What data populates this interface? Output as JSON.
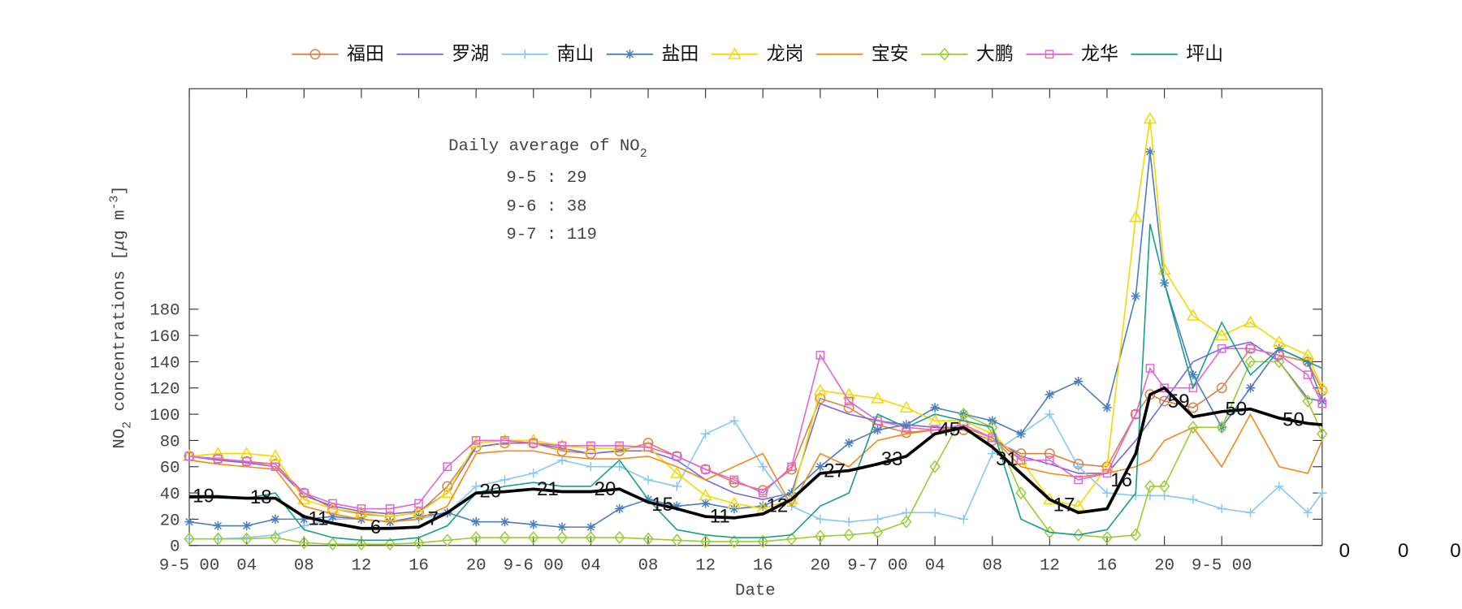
{
  "chart_data": {
    "type": "line",
    "xlabel": "Date",
    "ylabel": [
      "NO",
      "2",
      " concentrations [",
      "μ",
      "g m",
      "-3",
      "]"
    ],
    "annotation": {
      "title": "Daily average of NO",
      "title_sub": "2",
      "lines": [
        "9-5 : 29",
        "9-6 : 38",
        "9-7 : 119"
      ]
    },
    "extra_labels": [
      "0",
      "0",
      "0"
    ],
    "xlim": [
      0,
      79
    ],
    "ylim": [
      0,
      348
    ],
    "xticks": [
      {
        "value": 0,
        "label": "9-5 00"
      },
      {
        "value": 4,
        "label": "04"
      },
      {
        "value": 8,
        "label": "08"
      },
      12,
      16,
      20,
      {
        "value": 24,
        "label": "9-6 00"
      },
      {
        "value": 28,
        "label": "04"
      },
      {
        "value": 32,
        "label": "08"
      },
      {
        "value": 36,
        "label": "12"
      },
      {
        "value": 40,
        "label": "16"
      },
      {
        "value": 44,
        "label": "20"
      },
      {
        "value": 48,
        "label": "9-7 00"
      },
      {
        "value": 52,
        "label": "04"
      },
      {
        "value": 56,
        "label": "08"
      },
      {
        "value": 60,
        "label": "12"
      },
      {
        "value": 64,
        "label": "16"
      },
      {
        "value": 68,
        "label": "20"
      },
      {
        "value": 72,
        "label": "9-5 00"
      }
    ],
    "yticks": [
      0,
      20,
      40,
      60,
      80,
      100,
      120,
      140,
      160,
      180
    ],
    "x": [
      0,
      2,
      4,
      6,
      8,
      10,
      12,
      14,
      16,
      18,
      20,
      22,
      24,
      26,
      28,
      30,
      32,
      34,
      36,
      38,
      40,
      42,
      44,
      46,
      48,
      50,
      52,
      54,
      56,
      58,
      60,
      62,
      64,
      66,
      67,
      68,
      70,
      72,
      74,
      76,
      78,
      79
    ],
    "series": [
      {
        "name": "福田",
        "color": "#d9824a",
        "marker": "o",
        "values": [
          68,
          66,
          64,
          62,
          40,
          28,
          24,
          22,
          25,
          45,
          75,
          78,
          78,
          72,
          70,
          72,
          78,
          68,
          58,
          48,
          42,
          58,
          112,
          105,
          92,
          86,
          88,
          88,
          80,
          70,
          70,
          62,
          60,
          100,
          115,
          110,
          105,
          120,
          150,
          145,
          140,
          118
        ]
      },
      {
        "name": "罗湖",
        "color": "#7b68d9",
        "values": [
          68,
          65,
          63,
          60,
          38,
          30,
          26,
          24,
          26,
          40,
          75,
          78,
          78,
          74,
          70,
          72,
          72,
          65,
          50,
          40,
          35,
          40,
          108,
          100,
          95,
          92,
          90,
          90,
          82,
          68,
          62,
          55,
          55,
          80,
          95,
          110,
          140,
          150,
          155,
          140,
          112,
          110
        ]
      },
      {
        "name": "南山",
        "color": "#86c8f2",
        "marker": "+",
        "values": [
          5,
          5,
          6,
          8,
          15,
          20,
          20,
          18,
          20,
          25,
          45,
          50,
          55,
          65,
          60,
          60,
          50,
          45,
          85,
          95,
          60,
          30,
          20,
          18,
          20,
          25,
          25,
          20,
          70,
          85,
          100,
          60,
          40,
          38,
          38,
          38,
          35,
          28,
          25,
          45,
          25,
          40
        ]
      },
      {
        "name": "盐田",
        "color": "#4a7ec0",
        "marker": "*",
        "values": [
          18,
          15,
          15,
          20,
          20,
          22,
          20,
          18,
          22,
          25,
          18,
          18,
          16,
          14,
          14,
          28,
          35,
          30,
          32,
          28,
          30,
          40,
          60,
          78,
          88,
          92,
          105,
          100,
          95,
          85,
          115,
          125,
          105,
          190,
          300,
          200,
          130,
          90,
          120,
          150,
          140,
          110
        ]
      },
      {
        "name": "龙岗",
        "color": "#f5d800",
        "marker": "^",
        "values": [
          68,
          70,
          70,
          68,
          35,
          28,
          25,
          22,
          25,
          40,
          78,
          80,
          80,
          76,
          74,
          74,
          75,
          55,
          38,
          32,
          28,
          35,
          118,
          115,
          112,
          105,
          95,
          95,
          85,
          65,
          35,
          30,
          60,
          250,
          325,
          210,
          175,
          160,
          170,
          155,
          145,
          120
        ]
      },
      {
        "name": "宝安",
        "color": "#f08a1c",
        "values": [
          65,
          62,
          60,
          58,
          30,
          24,
          20,
          18,
          20,
          30,
          70,
          72,
          72,
          68,
          66,
          66,
          68,
          60,
          50,
          60,
          70,
          30,
          70,
          60,
          80,
          85,
          88,
          90,
          82,
          60,
          55,
          52,
          55,
          60,
          65,
          80,
          90,
          60,
          100,
          60,
          55,
          80
        ]
      },
      {
        "name": "大鹏",
        "color": "#9acd32",
        "marker": "d",
        "values": [
          5,
          5,
          5,
          6,
          2,
          1,
          1,
          1,
          2,
          4,
          6,
          6,
          6,
          6,
          6,
          6,
          5,
          4,
          3,
          3,
          3,
          5,
          7,
          8,
          10,
          18,
          60,
          100,
          90,
          40,
          10,
          8,
          6,
          8,
          45,
          45,
          90,
          90,
          140,
          140,
          110,
          85
        ]
      },
      {
        "name": "龙华",
        "color": "#e066d6",
        "marker": "s",
        "values": [
          68,
          66,
          64,
          60,
          40,
          32,
          28,
          28,
          32,
          60,
          80,
          80,
          78,
          76,
          76,
          76,
          75,
          68,
          58,
          50,
          40,
          60,
          145,
          110,
          95,
          90,
          88,
          92,
          82,
          65,
          65,
          50,
          55,
          100,
          135,
          120,
          120,
          150,
          150,
          145,
          130,
          108
        ]
      },
      {
        "name": "坪山",
        "color": "#1a9e8f",
        "values": [
          38,
          38,
          36,
          40,
          12,
          6,
          4,
          4,
          6,
          15,
          40,
          45,
          48,
          45,
          45,
          65,
          35,
          12,
          8,
          6,
          6,
          8,
          30,
          40,
          100,
          90,
          100,
          95,
          90,
          20,
          10,
          8,
          12,
          40,
          245,
          200,
          120,
          170,
          130,
          150,
          140,
          135
        ]
      }
    ],
    "mean": {
      "color": "#000000",
      "values": [
        37,
        37,
        36,
        36,
        22,
        17,
        13,
        13,
        14,
        25,
        40,
        41,
        43,
        41,
        41,
        43,
        33,
        28,
        22,
        21,
        24,
        35,
        55,
        57,
        62,
        68,
        85,
        90,
        75,
        55,
        35,
        25,
        28,
        70,
        115,
        120,
        98,
        102,
        104,
        97,
        93,
        92
      ]
    },
    "mean_labels": {
      "x": [
        1,
        5,
        9,
        13,
        17,
        21,
        25,
        29,
        33,
        37,
        41,
        45,
        49,
        53,
        57,
        61,
        65,
        69,
        73,
        77
      ],
      "values": [
        19,
        18,
        11,
        6,
        7,
        20,
        21,
        20,
        15,
        11,
        12,
        27,
        33,
        45,
        31,
        17,
        16,
        59,
        50,
        50
      ]
    }
  }
}
